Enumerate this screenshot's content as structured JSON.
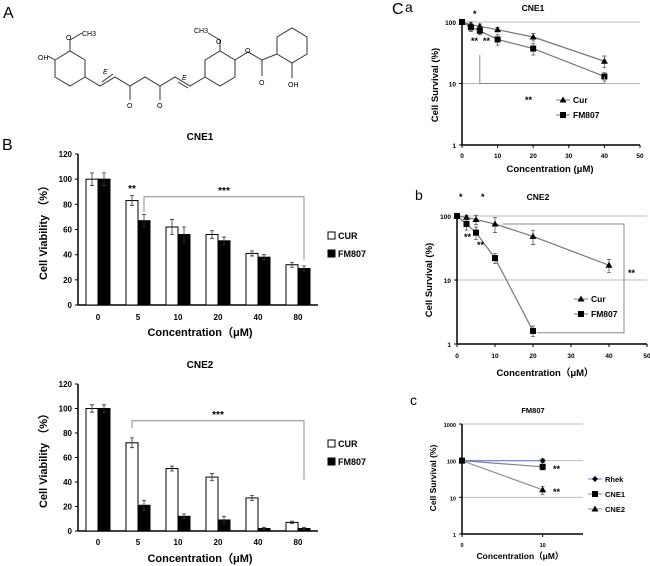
{
  "panels": {
    "A": "A",
    "B": "B",
    "C": "C",
    "Ca": "a",
    "Cb": "b",
    "Cc": "c"
  },
  "molecule": {
    "labels": [
      "OH",
      "O",
      "CH3",
      "O",
      "O",
      "CH3",
      "O",
      "O",
      "O",
      "OH",
      "E",
      "E"
    ]
  },
  "chart_data": [
    {
      "type": "bar",
      "title": "CNE1",
      "xlabel": "Concentration（μM)",
      "ylabel": "Cell Viability （%）",
      "categories": [
        "0",
        "5",
        "10",
        "20",
        "40",
        "80"
      ],
      "ylim": [
        0,
        120
      ],
      "yticks": [
        0,
        20,
        40,
        60,
        80,
        100,
        120
      ],
      "series": [
        {
          "name": "CUR",
          "color": "#ffffff",
          "values": [
            100,
            83,
            62,
            56,
            41,
            32
          ],
          "errors": [
            5,
            4,
            6,
            3,
            2,
            2
          ]
        },
        {
          "name": "FM807",
          "color": "#000000",
          "values": [
            100,
            67,
            56,
            51,
            38,
            29
          ],
          "errors": [
            5,
            5,
            6,
            3,
            2,
            2
          ]
        }
      ],
      "annotations": [
        {
          "text": "**",
          "category": "5"
        },
        {
          "text": "***",
          "span": [
            "5",
            "80"
          ]
        }
      ],
      "legend": "right",
      "grid": false
    },
    {
      "type": "bar",
      "title": "CNE2",
      "xlabel": "Concentration（μM)",
      "ylabel": "Cell Viability （%）",
      "categories": [
        "0",
        "5",
        "10",
        "20",
        "40",
        "80"
      ],
      "ylim": [
        0,
        120
      ],
      "yticks": [
        0,
        20,
        40,
        60,
        80,
        100,
        120
      ],
      "series": [
        {
          "name": "CUR",
          "color": "#ffffff",
          "values": [
            100,
            72,
            51,
            44,
            27,
            7
          ],
          "errors": [
            3,
            4,
            2,
            3,
            2,
            1
          ]
        },
        {
          "name": "FM807",
          "color": "#000000",
          "values": [
            100,
            21,
            12,
            9,
            2,
            2
          ],
          "errors": [
            3,
            4,
            2,
            3,
            1,
            1
          ]
        }
      ],
      "annotations": [
        {
          "text": "***",
          "span": [
            "5",
            "80"
          ]
        }
      ],
      "legend": "right",
      "grid": false
    },
    {
      "type": "line",
      "title": "CNE1",
      "xlabel": "Concentration (μM)",
      "ylabel": "Cell Survival (%)",
      "xlim": [
        0,
        50
      ],
      "xticks": [
        0,
        10,
        20,
        30,
        40,
        50
      ],
      "yscale": "log",
      "ylim": [
        1,
        100
      ],
      "yticks": [
        1,
        10,
        100
      ],
      "series": [
        {
          "name": "Cur",
          "marker": "triangle",
          "x": [
            0,
            2.5,
            5,
            10,
            20,
            40
          ],
          "y": [
            100,
            90,
            85,
            75,
            57,
            23
          ],
          "errors": [
            5,
            10,
            8,
            6,
            8,
            5
          ]
        },
        {
          "name": "FM807",
          "marker": "square",
          "x": [
            0,
            2.5,
            5,
            10,
            20,
            40
          ],
          "y": [
            100,
            82,
            72,
            52,
            37,
            13
          ],
          "errors": [
            5,
            12,
            10,
            10,
            8,
            2
          ]
        }
      ],
      "annotations": [
        "*",
        "**",
        "**",
        "**"
      ],
      "legend": "lower-right",
      "grid": "horizontal"
    },
    {
      "type": "line",
      "title": "CNE2",
      "xlabel": "Concentration（μM）",
      "ylabel": "Cell Survival (%)",
      "xlim": [
        0,
        50
      ],
      "xticks": [
        0,
        10,
        20,
        30,
        40,
        50
      ],
      "yscale": "log",
      "ylim": [
        1,
        100
      ],
      "yticks": [
        1,
        10,
        100
      ],
      "series": [
        {
          "name": "Cur",
          "marker": "triangle",
          "x": [
            0,
            2.5,
            5,
            10,
            20,
            40
          ],
          "y": [
            100,
            95,
            88,
            75,
            48,
            17
          ],
          "errors": [
            5,
            8,
            15,
            20,
            12,
            4
          ]
        },
        {
          "name": "FM807",
          "marker": "square",
          "x": [
            0,
            2.5,
            5,
            10,
            20
          ],
          "y": [
            100,
            75,
            55,
            22,
            1.6
          ],
          "errors": [
            5,
            15,
            12,
            4,
            0.3
          ]
        }
      ],
      "annotations": [
        "*",
        "*",
        "**",
        "**",
        "**"
      ],
      "legend": "lower-right",
      "grid": "horizontal"
    },
    {
      "type": "line",
      "title": "FM807",
      "xlabel": "Concentration（μM）",
      "ylabel": "Cell Survival (%)",
      "xlim": [
        0,
        15
      ],
      "xticks": [
        0,
        10
      ],
      "yscale": "log",
      "ylim": [
        1,
        1000
      ],
      "yticks": [
        1,
        10,
        100,
        1000
      ],
      "series": [
        {
          "name": "Rhek",
          "marker": "diamond",
          "color": "#7b7fc4",
          "x": [
            0,
            10
          ],
          "y": [
            100,
            100
          ],
          "errors": [
            0,
            10
          ]
        },
        {
          "name": "CNE1",
          "marker": "square",
          "color": "#808080",
          "x": [
            0,
            10
          ],
          "y": [
            100,
            68
          ],
          "errors": [
            0,
            12
          ]
        },
        {
          "name": "CNE2",
          "marker": "triangle",
          "color": "#909090",
          "x": [
            0,
            10
          ],
          "y": [
            100,
            16
          ],
          "errors": [
            0,
            4
          ]
        }
      ],
      "annotations": [
        "**",
        "**"
      ],
      "legend": "right",
      "grid": "horizontal"
    }
  ]
}
